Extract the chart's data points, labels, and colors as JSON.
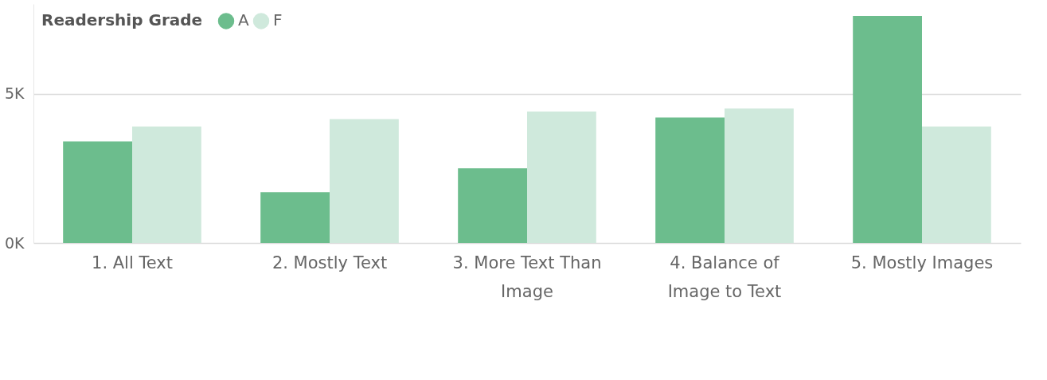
{
  "chart_data": {
    "type": "bar",
    "legend_title": "Readership Grade",
    "categories": [
      "1. All Text",
      "2. Mostly Text",
      "3. More Text Than Image",
      "4. Balance of Image to Text",
      "5. Mostly Images"
    ],
    "series": [
      {
        "name": "A",
        "color": "#6cbd8d",
        "values": [
          3400,
          1700,
          2500,
          4200,
          7600
        ]
      },
      {
        "name": "F",
        "color": "#cfe9dc",
        "values": [
          3900,
          4150,
          4400,
          4500,
          3900
        ]
      }
    ],
    "ylim": [
      0,
      8000
    ],
    "yticks": [
      {
        "value": 0,
        "label": "0K"
      },
      {
        "value": 5000,
        "label": "5K"
      }
    ],
    "grid": "y",
    "legend": "top left"
  }
}
